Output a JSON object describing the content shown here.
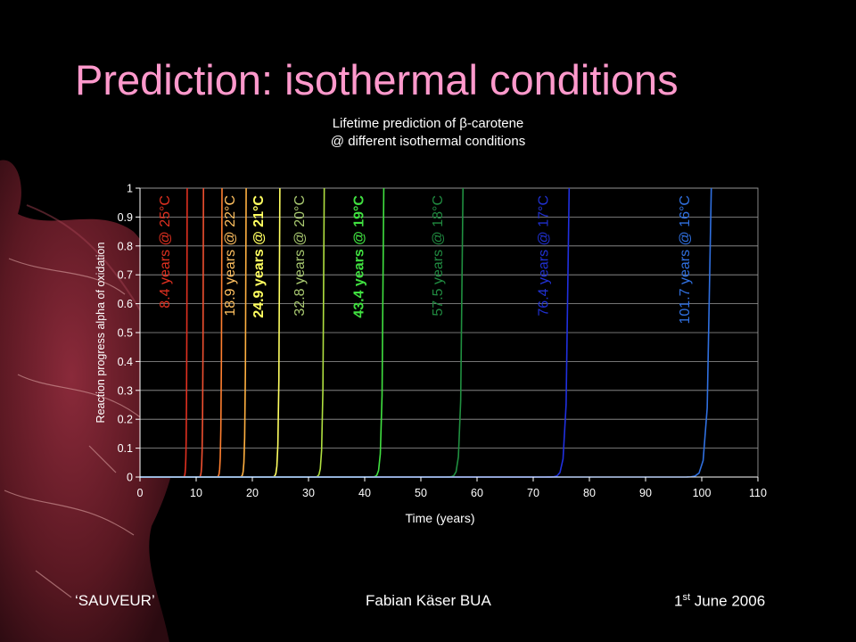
{
  "slide": {
    "title": "Prediction: isothermal conditions",
    "footer_left": "‘SAUVEUR’",
    "footer_center": "Fabian Käser BUA",
    "footer_right_day": "1",
    "footer_right_sup": "st",
    "footer_right_rest": " June 2006"
  },
  "chart_data": {
    "type": "line",
    "title_lines": [
      "Lifetime prediction of β-carotene",
      "@ different isothermal conditions"
    ],
    "xlabel": "Time (years)",
    "ylabel": "Reaction progress alpha of oxidation",
    "xlim": [
      0,
      110
    ],
    "ylim": [
      0,
      1
    ],
    "xticks": [
      0,
      10,
      20,
      30,
      40,
      50,
      60,
      70,
      80,
      90,
      100,
      110
    ],
    "yticks": [
      0,
      0.1,
      0.2,
      0.3,
      0.4,
      0.5,
      0.6,
      0.7,
      0.8,
      0.9,
      1
    ],
    "grid": "horizontal",
    "curves": [
      {
        "t": 8.4,
        "color": "#e03020"
      },
      {
        "t": 11.3,
        "color": "#f05030"
      },
      {
        "t": 14.6,
        "color": "#ff7f30"
      },
      {
        "t": 18.9,
        "color": "#ffb040"
      },
      {
        "t": 24.9,
        "color": "#ffff60"
      },
      {
        "t": 32.8,
        "color": "#b0e040"
      },
      {
        "t": 43.4,
        "color": "#40e040"
      },
      {
        "t": 57.5,
        "color": "#209040"
      },
      {
        "t": 76.4,
        "color": "#2030e0"
      },
      {
        "t": 101.7,
        "color": "#3070e0"
      }
    ],
    "annotations": [
      {
        "text": "8.4 years @ 25°C",
        "x": 5.2,
        "color": "#e03020",
        "bold": false
      },
      {
        "text": "18.9 years @ 22°C",
        "x": 16.8,
        "color": "#ffc060",
        "bold": false
      },
      {
        "text": "24.9 years @ 21°C",
        "x": 21.9,
        "color": "#ffff60",
        "bold": true
      },
      {
        "text": "32.8 years @ 20°C",
        "x": 29.2,
        "color": "#a8c870",
        "bold": false
      },
      {
        "text": "43.4 years @ 19°C",
        "x": 39.8,
        "color": "#40e040",
        "bold": true
      },
      {
        "text": "57.5 years @ 18°C",
        "x": 53.8,
        "color": "#208a40",
        "bold": false
      },
      {
        "text": "76.4 years @ 17°C",
        "x": 72.6,
        "color": "#2030d0",
        "bold": false
      },
      {
        "text": "101.7 years @ 16°C",
        "x": 97.8,
        "color": "#3070e0",
        "bold": false
      }
    ]
  }
}
